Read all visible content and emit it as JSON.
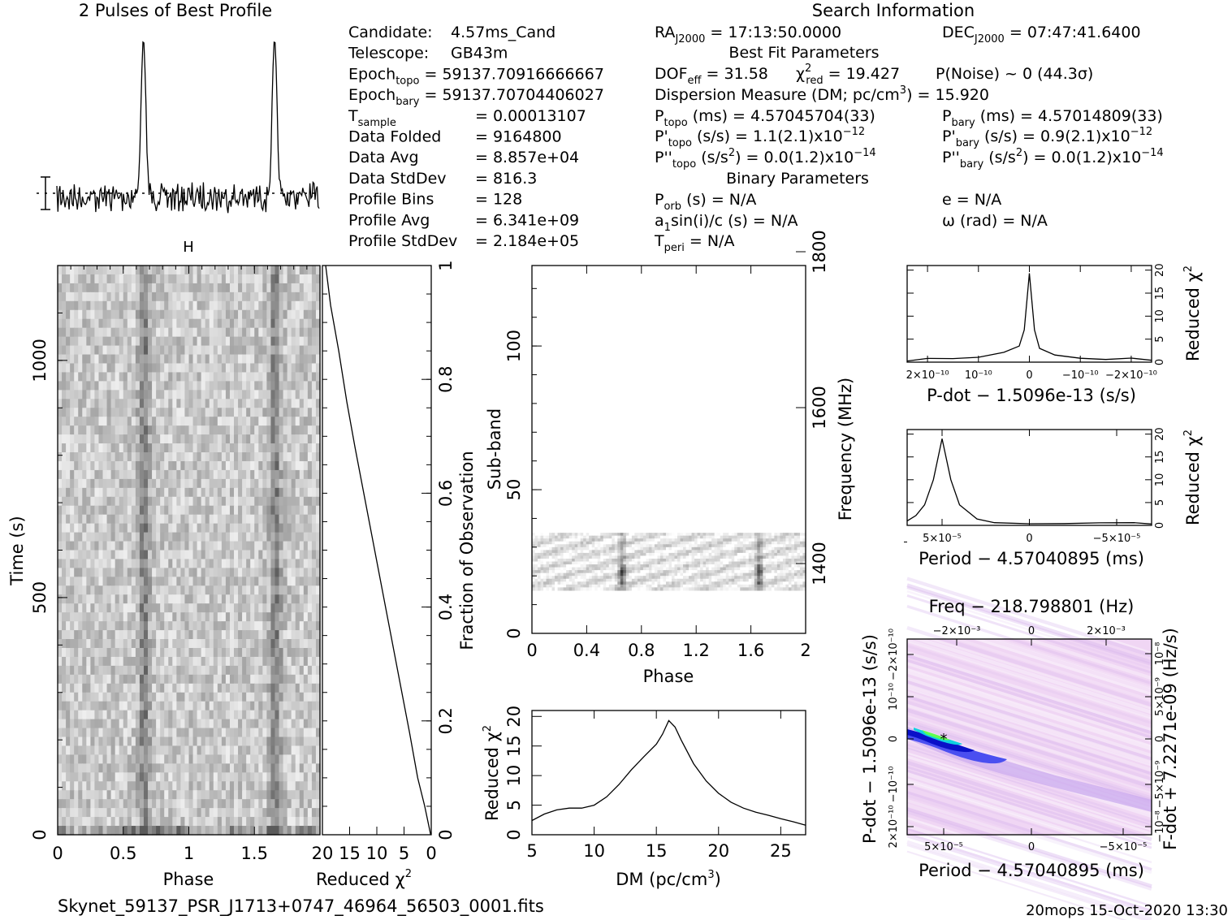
{
  "header": {
    "profile_title": "2 Pulses of Best Profile",
    "search_title": "Search Information",
    "best_fit_title": "Best Fit Parameters",
    "binary_title": "Binary Parameters"
  },
  "info_left": [
    {
      "label": "Candidate:",
      "value": "4.57ms_Cand"
    },
    {
      "label": "Telescope:",
      "value": "GB43m"
    },
    {
      "label": "Epoch_topo",
      "value": "= 59137.70916666667"
    },
    {
      "label": "Epoch_bary",
      "value": "= 59137.70704406027"
    },
    {
      "label": "T_sample",
      "value": "=  0.00013107"
    },
    {
      "label": "Data Folded",
      "value": "=  9164800"
    },
    {
      "label": "Data Avg",
      "value": "=  8.857e+04"
    },
    {
      "label": "Data StdDev",
      "value": "=  816.3"
    },
    {
      "label": "Profile Bins",
      "value": "=  128"
    },
    {
      "label": "Profile Avg",
      "value": "=  6.341e+09"
    },
    {
      "label": "Profile StdDev",
      "value": "=  2.184e+05"
    }
  ],
  "info_right": {
    "ra": "RA_J2000 = 17:13:50.0000",
    "dec": "DEC_J2000 = 07:47:41.6400",
    "dof": "DOF_eff = 31.58",
    "chi2": "χ²_red = 19.427",
    "pnoise": "P(Noise) ~ 0   (44.3σ)",
    "dm": "Dispersion Measure (DM; pc/cm³) = 15.920",
    "ptopo": "P_topo (ms) =  4.57045704(33)",
    "pbary": "P_bary (ms) =  4.57014809(33)",
    "pdtopo": "P'_topo (s/s) =  1.1(2.1)x10⁻¹²",
    "pdbary": "P'_bary (s/s) =  0.9(2.1)x10⁻¹²",
    "pddtopo": "P''_topo (s/s²) = 0.0(1.2)x10⁻¹⁴",
    "pddbary": "P''_bary (s/s²) = 0.0(1.2)x10⁻¹⁴",
    "porb": "P_orb (s) = N/A",
    "ecc": "e = N/A",
    "a1": "a₁sin(i)/c (s) = N/A",
    "omega": "ω (rad) = N/A",
    "tperi": "T_peri = N/A"
  },
  "footer": {
    "filename": "Skynet_59137_PSR_J1713+0747_46964_56503_0001.fits",
    "stamp": "20mops 15-Oct-2020 13:30"
  },
  "chart_data": [
    {
      "type": "line",
      "title": "2 Pulses of Best Profile",
      "x": [
        0.0,
        0.5,
        0.66,
        1.0,
        1.5,
        1.66,
        2.0
      ],
      "y_relative": [
        0.0,
        0.0,
        1.0,
        0.0,
        0.0,
        1.0,
        0.0
      ],
      "note_visible": "pulse peaks at phase ~0.66 and ~1.66"
    },
    {
      "type": "heatmap",
      "xlabel": "Phase",
      "ylabel": "Time (s)",
      "xlim": [
        0,
        2
      ],
      "ylim": [
        0,
        1200
      ],
      "x_ticks": [
        "0",
        "0.5",
        "1",
        "1.5"
      ],
      "y_ticks": [
        "0",
        "500",
        "1000"
      ],
      "pulse_phase": [
        0.66,
        1.66
      ]
    },
    {
      "type": "line",
      "xlabel": "Reduced χ²",
      "ylabel": "Fraction of Observation",
      "xlim": [
        20,
        0
      ],
      "ylim": [
        0,
        1
      ],
      "x_ticks": [
        "20",
        "15",
        "10",
        "5",
        "0"
      ],
      "y_ticks": [
        "0",
        "0.2",
        "0.4",
        "0.6",
        "0.8",
        "1"
      ],
      "x": [
        0.1,
        1.2,
        2.5,
        4.0,
        6.0,
        8.0,
        10.0,
        12.0,
        14.0,
        15.5,
        17.0,
        18.5,
        19.4
      ],
      "y": [
        0.0,
        0.05,
        0.1,
        0.18,
        0.28,
        0.38,
        0.48,
        0.58,
        0.68,
        0.76,
        0.85,
        0.93,
        1.0
      ]
    },
    {
      "type": "heatmap",
      "xlabel": "Phase",
      "ylabel": "Sub-band",
      "ylabel_right": "Frequency (MHz)",
      "xlim": [
        0,
        2
      ],
      "ylim": [
        0,
        128
      ],
      "x_ticks": [
        "0",
        "0.4",
        "0.8",
        "1.2",
        "1.6",
        "2"
      ],
      "y_ticks": [
        "0",
        "50",
        "100"
      ],
      "freq_ticks": [
        "1400",
        "1600",
        "1800"
      ],
      "band_subbands": [
        15,
        35
      ],
      "pulse_phase": [
        0.66,
        1.66
      ]
    },
    {
      "type": "line",
      "xlabel": "DM (pc/cm³)",
      "ylabel": "Reduced χ²",
      "xlim": [
        5,
        27
      ],
      "ylim": [
        0,
        21
      ],
      "x_ticks": [
        "5",
        "10",
        "15",
        "20",
        "25"
      ],
      "y_ticks": [
        "0",
        "5",
        "10",
        "15",
        "20"
      ],
      "x": [
        5,
        6,
        7,
        8,
        9,
        10,
        11,
        12,
        13,
        14,
        15,
        15.5,
        16,
        16.5,
        17,
        18,
        19,
        20,
        21,
        22,
        23,
        24,
        25,
        26,
        27
      ],
      "y": [
        2.4,
        3.5,
        4.2,
        4.5,
        4.5,
        5.0,
        6.4,
        8.5,
        11.0,
        13.2,
        15.3,
        17.0,
        19.3,
        18.2,
        16.0,
        12.0,
        9.1,
        7.0,
        5.5,
        4.5,
        3.8,
        3.3,
        2.7,
        2.2,
        1.6
      ]
    },
    {
      "type": "line",
      "xlabel": "P-dot − 1.5096e-13 (s/s)",
      "ylabel": "Reduced χ²",
      "ylim": [
        0,
        21
      ],
      "x_ticks": [
        "2×10⁻¹⁰",
        "10⁻¹⁰",
        "0",
        "−10⁻¹⁰",
        "−2×10⁻¹⁰"
      ],
      "y_ticks": [
        "0",
        "5",
        "10",
        "15",
        "20"
      ],
      "x": [
        2.4e-10,
        2e-10,
        1.5e-10,
        1e-10,
        5e-11,
        2e-11,
        1e-11,
        0,
        -1e-11,
        -2e-11,
        -5e-11,
        -1e-10,
        -1.5e-10,
        -2e-10,
        -2.4e-10
      ],
      "y": [
        0.5,
        0.8,
        1.0,
        1.3,
        2.0,
        3.5,
        7.0,
        19.3,
        7.0,
        3.0,
        1.6,
        1.0,
        0.8,
        0.7,
        0.5
      ]
    },
    {
      "type": "line",
      "xlabel": "Period − 4.57040895 (ms)",
      "ylabel": "Reduced χ²",
      "ylim": [
        0,
        21
      ],
      "x_ticks": [
        "5×10⁻⁵",
        "0",
        "−5×10⁻⁵"
      ],
      "y_ticks": [
        "0",
        "5",
        "10",
        "15",
        "20"
      ],
      "x": [
        7e-05,
        6.5e-05,
        6e-05,
        5.5e-05,
        5e-05,
        4.5e-05,
        4e-05,
        3e-05,
        2e-05,
        0,
        -2e-05,
        -4e-05,
        -6e-05,
        -7e-05
      ],
      "y": [
        1.0,
        2.0,
        4.5,
        10.0,
        19.0,
        10.0,
        4.5,
        1.5,
        0.8,
        0.5,
        0.5,
        0.5,
        0.5,
        0.5
      ]
    },
    {
      "type": "heatmap",
      "title": "Freq − 218.798801 (Hz)",
      "xlabel": "Period − 4.57040895 (ms)",
      "ylabel": "P-dot − 1.5096e-13 (s/s)",
      "ylabel_right": "F-dot + 7.2271e-09 (Hz/s)",
      "x_ticks": [
        "5×10⁻⁵",
        "0",
        "−5×10⁻⁵"
      ],
      "top_ticks": [
        "−2×10⁻³",
        "0",
        "2×10⁻³"
      ],
      "y_ticks": [
        "2×10⁻¹⁰",
        "−10⁻¹⁰",
        "0",
        "10⁻¹⁰",
        "−2×10⁻¹⁰"
      ],
      "right_ticks": [
        "10⁻⁸",
        "5×10⁻⁹",
        "0",
        "−5×10⁻⁹",
        "−10⁻⁸"
      ]
    }
  ]
}
